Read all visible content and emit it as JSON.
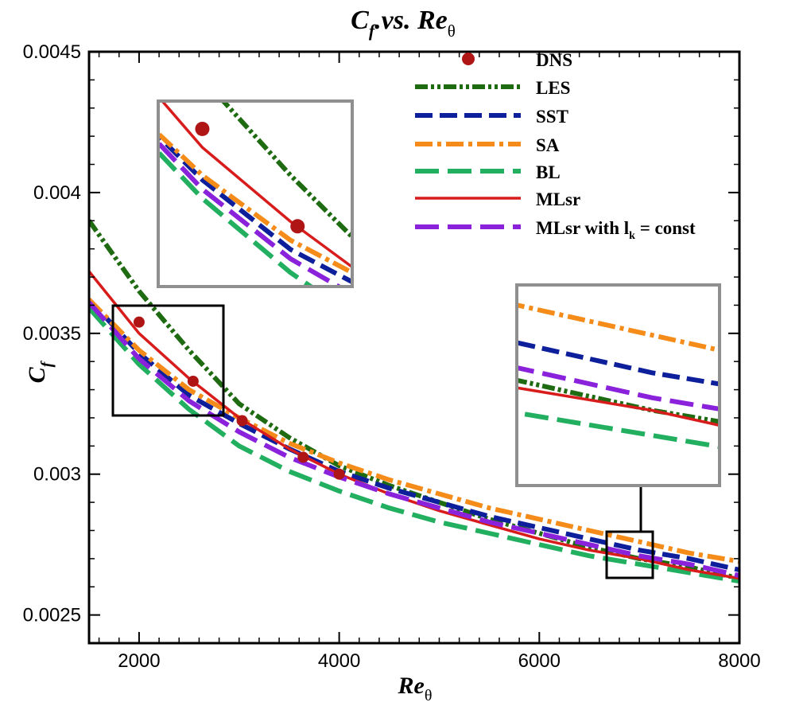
{
  "chart_data": {
    "type": "line",
    "title": {
      "main": "C",
      "sub1": "f",
      "mid": ".vs. Re",
      "sub2": "θ"
    },
    "xlabel": {
      "main": "Re",
      "sub": "θ"
    },
    "ylabel": {
      "main": "C",
      "sub": "f"
    },
    "xlim": [
      1500,
      8000
    ],
    "ylim": [
      0.0024,
      0.0045
    ],
    "xticks": [
      2000,
      4000,
      6000,
      8000
    ],
    "xtick_labels": [
      "2000",
      "4000",
      "6000",
      "8000"
    ],
    "yticks": [
      0.0025,
      0.003,
      0.0035,
      0.004,
      0.0045
    ],
    "ytick_labels": [
      "0.0025",
      "0.003",
      "0.0035",
      "0.004",
      "0.0045"
    ],
    "grid": false,
    "legend_position": "top-right",
    "series": [
      {
        "name": "DNS",
        "style": "marker",
        "color": "#b01515",
        "x": [
          2000,
          2540,
          3030,
          3640,
          4000
        ],
        "y": [
          0.00354,
          0.00333,
          0.00319,
          0.00306,
          0.003
        ]
      },
      {
        "name": "LES",
        "style": "dashdotdot",
        "color": "#1f6b12",
        "x": [
          1500,
          2000,
          2500,
          3000,
          3500,
          4000,
          4500,
          5000,
          5500,
          6000,
          6500,
          7000,
          7500,
          8000
        ],
        "y": [
          0.0039,
          0.00365,
          0.00344,
          0.00325,
          0.00313,
          0.00303,
          0.00296,
          0.0029,
          0.00284,
          0.00279,
          0.00274,
          0.0027,
          0.00267,
          0.00263
        ]
      },
      {
        "name": "SST",
        "style": "dashed",
        "color": "#0d1f9a",
        "x": [
          1500,
          2000,
          2500,
          3000,
          3500,
          4000,
          4500,
          5000,
          5500,
          6000,
          6500,
          7000,
          7500,
          8000
        ],
        "y": [
          0.00362,
          0.00343,
          0.00328,
          0.00318,
          0.00309,
          0.00301,
          0.00295,
          0.0029,
          0.00285,
          0.00281,
          0.00277,
          0.00273,
          0.0027,
          0.00266
        ]
      },
      {
        "name": "SA",
        "style": "dashdot",
        "color": "#f58c1a",
        "x": [
          1500,
          2000,
          2500,
          3000,
          3500,
          4000,
          4500,
          5000,
          5500,
          6000,
          6500,
          7000,
          7500,
          8000
        ],
        "y": [
          0.00362,
          0.00344,
          0.0033,
          0.0032,
          0.00311,
          0.00304,
          0.00298,
          0.00293,
          0.00288,
          0.00284,
          0.0028,
          0.00276,
          0.00272,
          0.00269
        ]
      },
      {
        "name": "BL",
        "style": "longdash",
        "color": "#22b060",
        "x": [
          1500,
          2000,
          2500,
          3000,
          3500,
          4000,
          4500,
          5000,
          5500,
          6000,
          6500,
          7000,
          7500,
          8000
        ],
        "y": [
          0.00359,
          0.00339,
          0.00323,
          0.0031,
          0.00301,
          0.00294,
          0.00288,
          0.00283,
          0.00279,
          0.00275,
          0.00271,
          0.00268,
          0.00265,
          0.00262
        ]
      },
      {
        "name": "MLsr",
        "style": "solid",
        "color": "#d81c1c",
        "x": [
          1500,
          2000,
          2500,
          3000,
          3500,
          4000,
          4500,
          5000,
          5500,
          6000,
          6500,
          7000,
          7500,
          8000
        ],
        "y": [
          0.00372,
          0.0035,
          0.00334,
          0.0032,
          0.00309,
          0.003,
          0.00293,
          0.00287,
          0.00282,
          0.00277,
          0.00273,
          0.0027,
          0.00266,
          0.00263
        ]
      },
      {
        "name": "MLsr with l",
        "name_sub": "k",
        "name_suffix": " = const",
        "style": "longdash",
        "color": "#8a22dc",
        "x": [
          1500,
          2000,
          2500,
          3000,
          3500,
          4000,
          4500,
          5000,
          5500,
          6000,
          6500,
          7000,
          7500,
          8000
        ],
        "y": [
          0.00361,
          0.00341,
          0.00326,
          0.00315,
          0.00306,
          0.00299,
          0.00293,
          0.00288,
          0.00283,
          0.00279,
          0.00275,
          0.00271,
          0.00268,
          0.00264
        ]
      }
    ],
    "insets": [
      {
        "name": "zoom-left",
        "region": {
          "x": [
            1750,
            2850
          ],
          "y": [
            0.0032,
            0.0036
          ]
        },
        "position": "upper-left"
      },
      {
        "name": "zoom-right",
        "region": {
          "x": [
            6700,
            7150
          ],
          "y": [
            0.00264,
            0.0028
          ]
        },
        "position": "right"
      }
    ]
  },
  "colors": {
    "axis": "#000000",
    "inset_frame": "#8f8f8f",
    "zoom_box": "#000000"
  }
}
